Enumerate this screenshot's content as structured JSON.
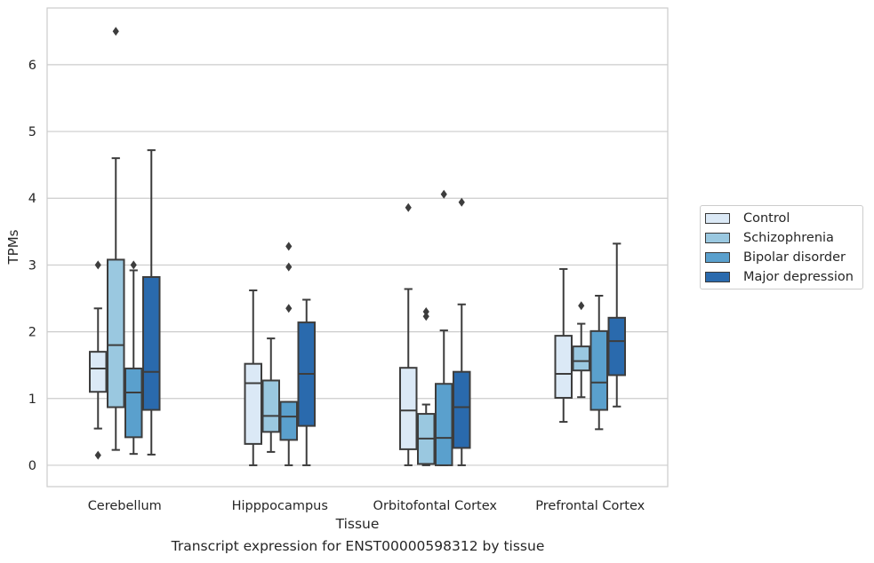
{
  "chart_data": {
    "type": "box",
    "xlabel": "Tissue",
    "ylabel": "TPMs",
    "caption": "Transcript expression for ENST00000598312 by tissue",
    "ylim": [
      -0.32,
      6.85
    ],
    "yticks": [
      "0",
      "1",
      "2",
      "3",
      "4",
      "5",
      "6"
    ],
    "grid": true,
    "legend_position": "right",
    "categories": [
      "Cerebellum",
      "Hipppocampus",
      "Orbitofontal Cortex",
      "Prefrontal Cortex"
    ],
    "series": [
      {
        "name": "Control",
        "color": "#dbe9f6",
        "boxes": [
          {
            "whisker_low": 0.55,
            "q1": 1.1,
            "median": 1.45,
            "q3": 1.7,
            "whisker_high": 2.35,
            "outliers": [
              3.0,
              0.15
            ]
          },
          {
            "whisker_low": 0.0,
            "q1": 0.32,
            "median": 1.23,
            "q3": 1.52,
            "whisker_high": 2.62,
            "outliers": []
          },
          {
            "whisker_low": 0.0,
            "q1": 0.24,
            "median": 0.82,
            "q3": 1.46,
            "whisker_high": 2.64,
            "outliers": [
              3.86
            ]
          },
          {
            "whisker_low": 0.65,
            "q1": 1.01,
            "median": 1.37,
            "q3": 1.94,
            "whisker_high": 2.94,
            "outliers": []
          }
        ]
      },
      {
        "name": "Schizophrenia",
        "color": "#9ac8e0",
        "boxes": [
          {
            "whisker_low": 0.23,
            "q1": 0.87,
            "median": 1.8,
            "q3": 3.08,
            "whisker_high": 4.6,
            "outliers": [
              6.5
            ]
          },
          {
            "whisker_low": 0.2,
            "q1": 0.5,
            "median": 0.74,
            "q3": 1.27,
            "whisker_high": 1.9,
            "outliers": []
          },
          {
            "whisker_low": 0.0,
            "q1": 0.02,
            "median": 0.4,
            "q3": 0.77,
            "whisker_high": 0.91,
            "outliers": [
              2.3,
              2.23
            ]
          },
          {
            "whisker_low": 1.02,
            "q1": 1.42,
            "median": 1.56,
            "q3": 1.78,
            "whisker_high": 2.12,
            "outliers": [
              2.39
            ]
          }
        ]
      },
      {
        "name": "Bipolar disorder",
        "color": "#5aa0cd",
        "boxes": [
          {
            "whisker_low": 0.17,
            "q1": 0.42,
            "median": 1.09,
            "q3": 1.45,
            "whisker_high": 2.92,
            "outliers": [
              3.0
            ]
          },
          {
            "whisker_low": 0.0,
            "q1": 0.38,
            "median": 0.73,
            "q3": 0.95,
            "whisker_high": 0.95,
            "outliers": [
              3.28,
              2.97,
              2.35
            ]
          },
          {
            "whisker_low": 0.0,
            "q1": 0.0,
            "median": 0.41,
            "q3": 1.22,
            "whisker_high": 2.02,
            "outliers": [
              4.06
            ]
          },
          {
            "whisker_low": 0.54,
            "q1": 0.83,
            "median": 1.24,
            "q3": 2.01,
            "whisker_high": 2.54,
            "outliers": []
          }
        ]
      },
      {
        "name": "Major depression",
        "color": "#2a6aad",
        "boxes": [
          {
            "whisker_low": 0.16,
            "q1": 0.83,
            "median": 1.4,
            "q3": 2.82,
            "whisker_high": 4.72,
            "outliers": []
          },
          {
            "whisker_low": 0.0,
            "q1": 0.59,
            "median": 1.37,
            "q3": 2.14,
            "whisker_high": 2.48,
            "outliers": []
          },
          {
            "whisker_low": 0.0,
            "q1": 0.26,
            "median": 0.87,
            "q3": 1.4,
            "whisker_high": 2.41,
            "outliers": [
              3.94
            ]
          },
          {
            "whisker_low": 0.88,
            "q1": 1.35,
            "median": 1.86,
            "q3": 2.21,
            "whisker_high": 3.32,
            "outliers": []
          }
        ]
      }
    ]
  }
}
